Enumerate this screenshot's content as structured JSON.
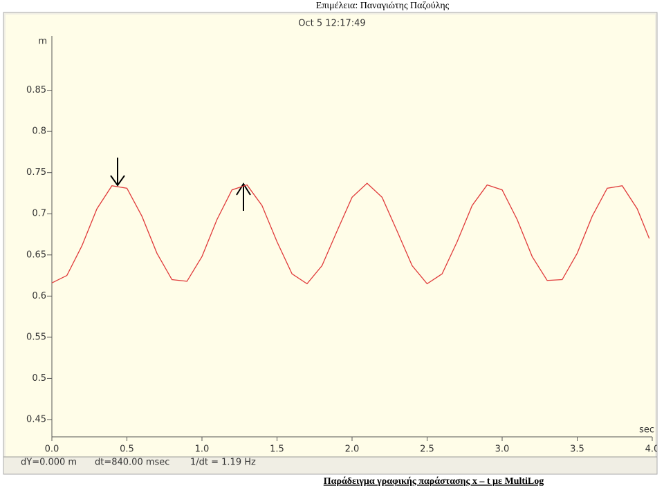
{
  "header": "Επιμέλεια:  Παναγιώτης Παζούλης",
  "caption": "Παράδειγμα γραφικής παράστασης x – t με MultiLog",
  "chart_data": {
    "type": "line",
    "title": "Oct 5 12:17:49",
    "ylabel": "m",
    "xlabel": "sec",
    "x": [
      0,
      0.1,
      0.2,
      0.3,
      0.4,
      0.5,
      0.6,
      0.7,
      0.8,
      0.9,
      1.0,
      1.1,
      1.2,
      1.3,
      1.4,
      1.5,
      1.6,
      1.7,
      1.8,
      1.9,
      2.0,
      2.1,
      2.2,
      2.3,
      2.4,
      2.5,
      2.6,
      2.7,
      2.8,
      2.9,
      3.0,
      3.1,
      3.2,
      3.3,
      3.4,
      3.5,
      3.6,
      3.7,
      3.8,
      3.9,
      3.98
    ],
    "series": [
      {
        "color": "#e03a3a",
        "values": [
          0.616,
          0.625,
          0.661,
          0.706,
          0.734,
          0.731,
          0.697,
          0.652,
          0.62,
          0.618,
          0.648,
          0.693,
          0.729,
          0.735,
          0.71,
          0.666,
          0.627,
          0.615,
          0.637,
          0.679,
          0.72,
          0.737,
          0.72,
          0.679,
          0.637,
          0.615,
          0.627,
          0.666,
          0.71,
          0.735,
          0.729,
          0.693,
          0.648,
          0.619,
          0.62,
          0.652,
          0.697,
          0.731,
          0.734,
          0.706,
          0.67
        ]
      }
    ],
    "xlim": [
      0,
      4.0
    ],
    "ylim": [
      0.429,
      0.916
    ],
    "xticks": [
      {
        "value": 0,
        "label": "0.0"
      },
      0.5,
      {
        "value": 1,
        "label": "1.0"
      },
      1.5,
      {
        "value": 2,
        "label": "2.0"
      },
      2.5,
      {
        "value": 3,
        "label": "3.0"
      },
      3.5,
      {
        "value": 4,
        "label": "4.0"
      }
    ],
    "yticks": [
      0.45,
      0.5,
      0.55,
      0.6,
      0.65,
      0.7,
      0.75,
      0.8,
      0.85
    ],
    "grid": false,
    "status": [
      "dY=0.000 m",
      "dt=840.00 msec",
      "1/dt = 1.19 Hz"
    ]
  }
}
